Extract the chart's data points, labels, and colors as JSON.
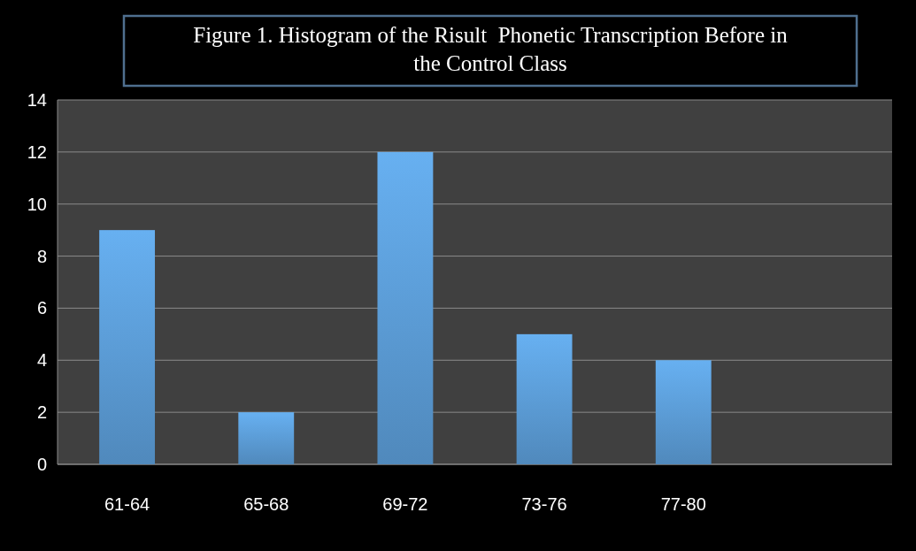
{
  "chart_data": {
    "type": "bar",
    "title": "Figure 1. Histogram of the Risult  Phonetic Transcription Before in the Control Class",
    "categories": [
      "61-64",
      "65-68",
      "69-72",
      "73-76",
      "77-80",
      null
    ],
    "values": [
      9,
      2,
      12,
      5,
      4,
      null
    ],
    "color": "#5b9bd5",
    "ylim": [
      0,
      14
    ],
    "yticks": [
      0,
      2,
      4,
      6,
      8,
      10,
      12,
      14
    ],
    "grid": "y"
  }
}
